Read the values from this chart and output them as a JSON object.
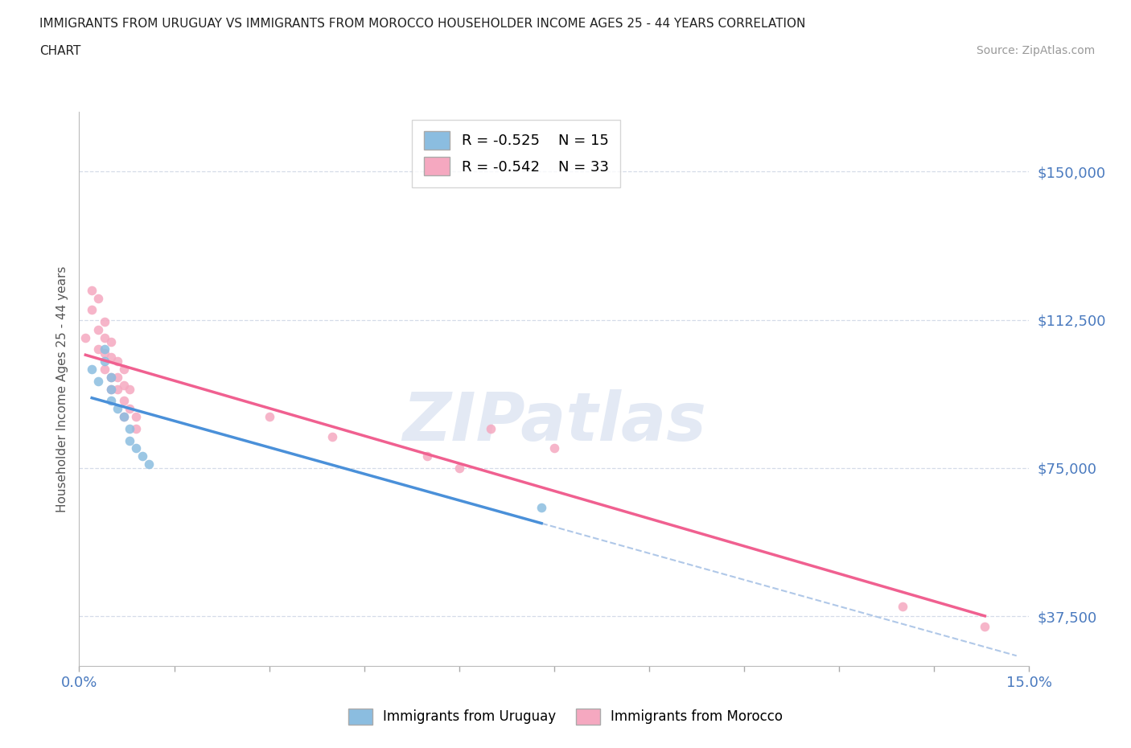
{
  "title_line1": "IMMIGRANTS FROM URUGUAY VS IMMIGRANTS FROM MOROCCO HOUSEHOLDER INCOME AGES 25 - 44 YEARS CORRELATION",
  "title_line2": "CHART",
  "source": "Source: ZipAtlas.com",
  "ylabel": "Householder Income Ages 25 - 44 years",
  "xlim": [
    0.0,
    0.15
  ],
  "ylim": [
    25000,
    165000
  ],
  "yticks": [
    37500,
    75000,
    112500,
    150000
  ],
  "ytick_labels": [
    "$37,500",
    "$75,000",
    "$112,500",
    "$150,000"
  ],
  "xticks": [
    0.0,
    0.015,
    0.03,
    0.045,
    0.06,
    0.075,
    0.09,
    0.105,
    0.12,
    0.135,
    0.15
  ],
  "xtick_labels_show": [
    "0.0%",
    "",
    "",
    "",
    "",
    "",
    "",
    "",
    "",
    "",
    "15.0%"
  ],
  "r_uruguay": -0.525,
  "n_uruguay": 15,
  "r_morocco": -0.542,
  "n_morocco": 33,
  "color_uruguay": "#8bbde0",
  "color_morocco": "#f5a8c0",
  "line_color_uruguay": "#4a90d9",
  "line_color_morocco": "#f06090",
  "line_color_extended": "#b0c8e8",
  "background_color": "#ffffff",
  "grid_color": "#d5dce8",
  "watermark_text": "ZIPatlas",
  "watermark_color": "#ccd8ec",
  "axis_label_color": "#4a7abf",
  "uruguay_x": [
    0.002,
    0.003,
    0.004,
    0.004,
    0.005,
    0.005,
    0.005,
    0.006,
    0.007,
    0.008,
    0.008,
    0.009,
    0.01,
    0.011,
    0.073
  ],
  "uruguay_y": [
    100000,
    97000,
    105000,
    102000,
    95000,
    98000,
    92000,
    90000,
    88000,
    85000,
    82000,
    80000,
    78000,
    76000,
    65000
  ],
  "morocco_x": [
    0.001,
    0.002,
    0.002,
    0.003,
    0.003,
    0.003,
    0.004,
    0.004,
    0.004,
    0.004,
    0.005,
    0.005,
    0.005,
    0.005,
    0.006,
    0.006,
    0.006,
    0.007,
    0.007,
    0.007,
    0.007,
    0.008,
    0.008,
    0.009,
    0.009,
    0.03,
    0.04,
    0.055,
    0.06,
    0.065,
    0.075,
    0.13,
    0.143
  ],
  "morocco_y": [
    108000,
    120000,
    115000,
    110000,
    105000,
    118000,
    112000,
    108000,
    104000,
    100000,
    107000,
    103000,
    98000,
    95000,
    102000,
    98000,
    95000,
    100000,
    96000,
    92000,
    88000,
    95000,
    90000,
    88000,
    85000,
    88000,
    83000,
    78000,
    75000,
    85000,
    80000,
    40000,
    35000
  ]
}
